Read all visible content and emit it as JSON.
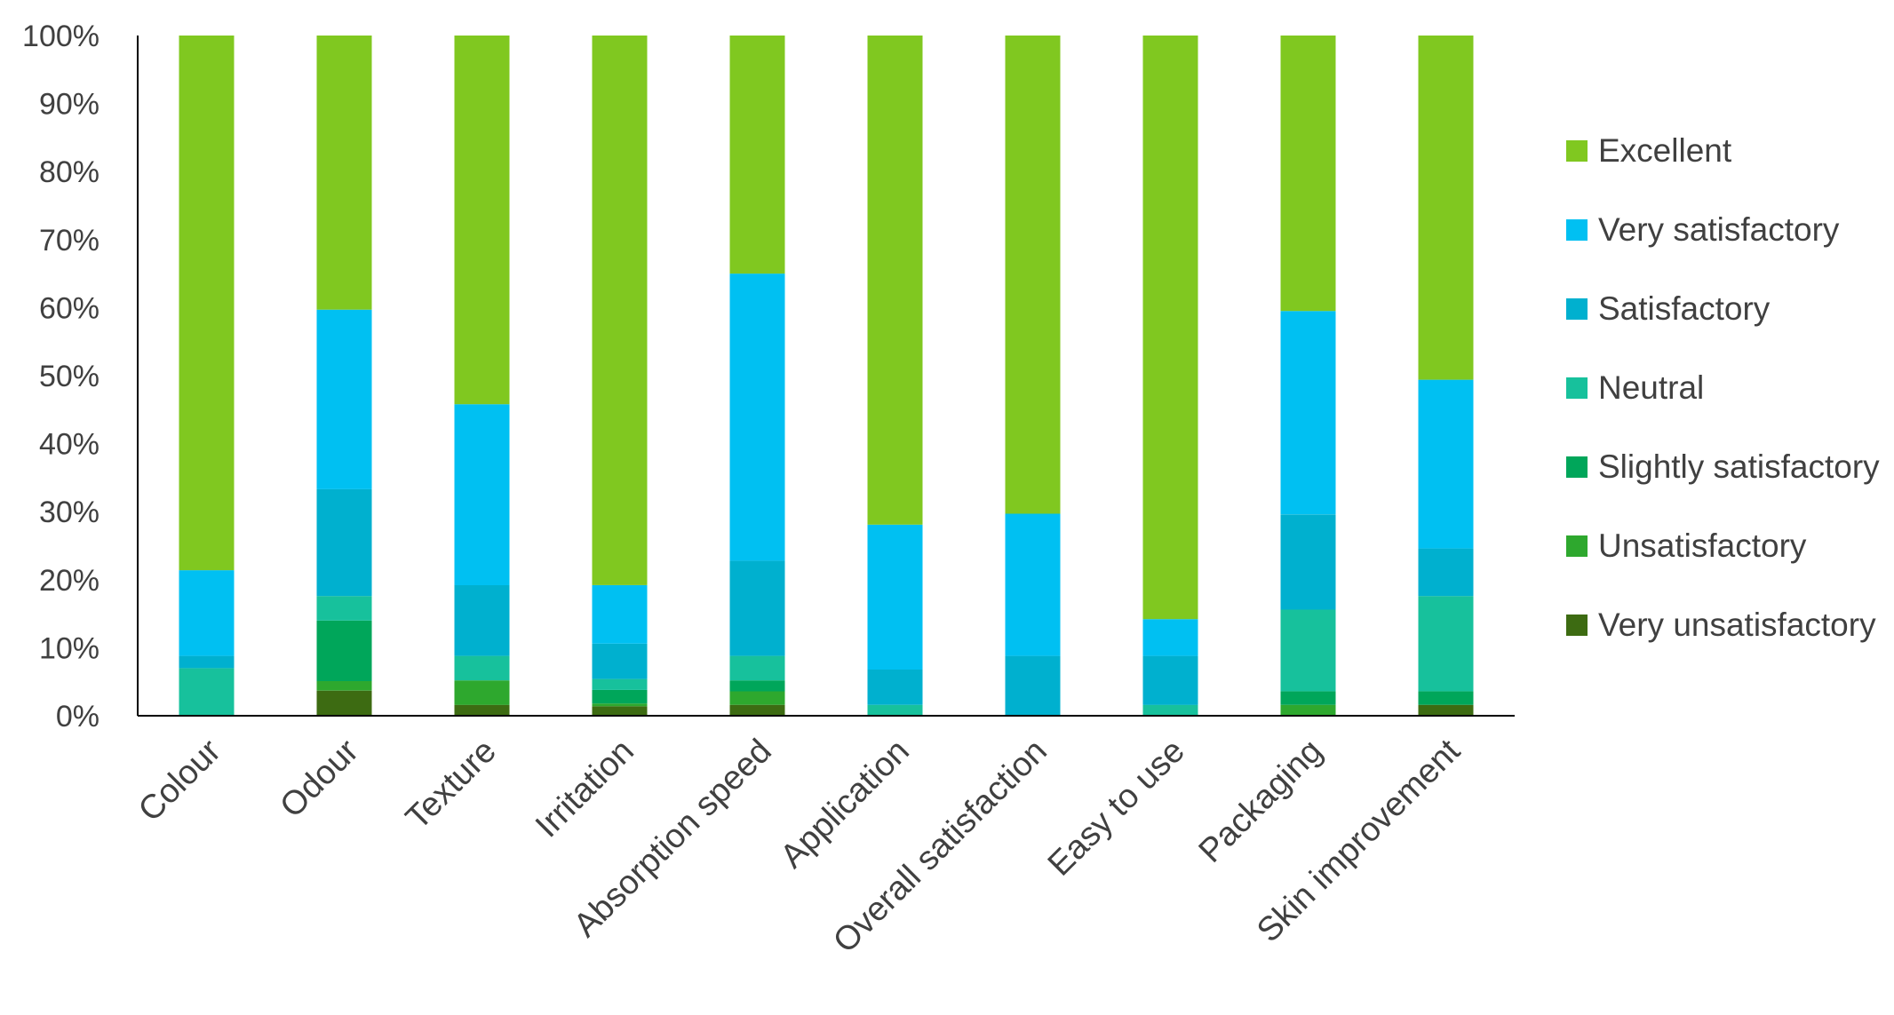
{
  "chart_data": {
    "type": "bar",
    "stacked": true,
    "percent": true,
    "title": "",
    "xlabel": "",
    "ylabel": "",
    "ylim": [
      0,
      100
    ],
    "yticks": [
      "0%",
      "10%",
      "20%",
      "30%",
      "40%",
      "50%",
      "60%",
      "70%",
      "80%",
      "90%",
      "100%"
    ],
    "grid": false,
    "legend_position": "right",
    "categories": [
      "Colour",
      "Odour",
      "Texture",
      "Irritation",
      "Absorption speed",
      "Application",
      "Overall satisfaction",
      "Easy to use",
      "Packaging",
      "Skin improvement"
    ],
    "series": [
      {
        "name": "Very unsatisfactory",
        "color": "#3d6b12",
        "values": [
          0,
          3.7,
          1.6,
          1.4,
          1.6,
          0,
          0,
          0,
          0,
          1.6
        ]
      },
      {
        "name": "Unsatisfactory",
        "color": "#2ea82e",
        "values": [
          0,
          1.4,
          3.6,
          0.4,
          2.0,
          0,
          0,
          0,
          1.6,
          0
        ]
      },
      {
        "name": "Slightly satisfactory",
        "color": "#00a65a",
        "values": [
          0,
          8.9,
          0,
          2.0,
          1.6,
          0,
          0,
          0,
          2.0,
          2.0
        ]
      },
      {
        "name": "Neutral",
        "color": "#17c19c",
        "values": [
          7.0,
          3.6,
          3.6,
          1.6,
          3.6,
          1.6,
          0,
          1.6,
          12.0,
          14.0
        ]
      },
      {
        "name": "Satisfactory",
        "color": "#00b0cf",
        "values": [
          1.8,
          15.7,
          10.4,
          5.2,
          14.0,
          5.2,
          8.8,
          7.2,
          14.0,
          7.0
        ]
      },
      {
        "name": "Very satisfactory",
        "color": "#00c0f2",
        "values": [
          12.6,
          26.4,
          26.6,
          8.6,
          42.2,
          21.3,
          20.9,
          5.4,
          29.9,
          24.8
        ]
      },
      {
        "name": "Excellent",
        "color": "#80c820",
        "values": [
          78.6,
          40.3,
          54.2,
          80.8,
          35.0,
          71.9,
          70.3,
          85.8,
          40.5,
          50.6
        ]
      }
    ],
    "legend_order": [
      "Excellent",
      "Very satisfactory",
      "Satisfactory",
      "Neutral",
      "Slightly satisfactory",
      "Unsatisfactory",
      "Very unsatisfactory"
    ]
  }
}
